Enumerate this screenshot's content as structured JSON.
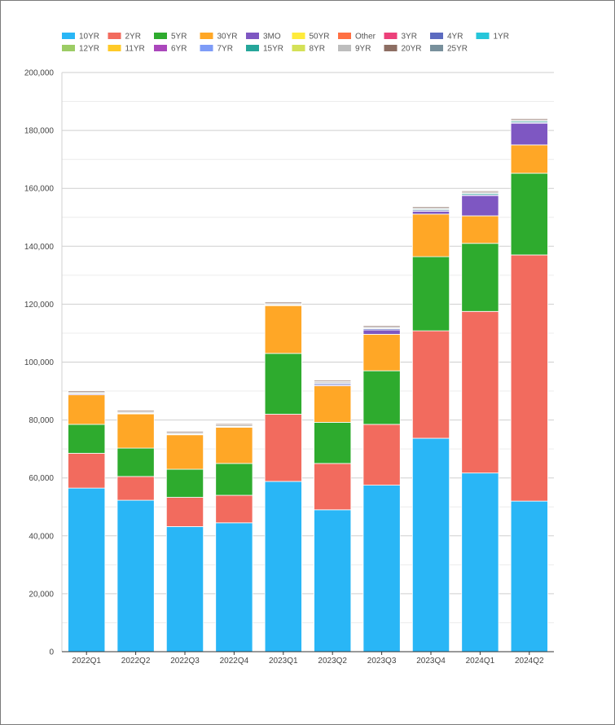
{
  "chart_data": {
    "type": "bar",
    "stacked": true,
    "categories": [
      "2022Q1",
      "2022Q2",
      "2022Q3",
      "2022Q4",
      "2023Q1",
      "2023Q2",
      "2023Q3",
      "2023Q4",
      "2024Q1",
      "2024Q2"
    ],
    "ylim": [
      0,
      200000
    ],
    "yticks": [
      0,
      20000,
      40000,
      60000,
      80000,
      100000,
      120000,
      140000,
      160000,
      180000,
      200000
    ],
    "ytick_labels": [
      "0",
      "20,000",
      "40,000",
      "60,000",
      "80,000",
      "100,000",
      "120,000",
      "140,000",
      "160,000",
      "180,000",
      "200,000"
    ],
    "grid": true,
    "legend_position": "top",
    "series": [
      {
        "name": "10YR",
        "color": "#29b6f6",
        "values": [
          56500,
          52300,
          43200,
          44500,
          58800,
          49000,
          57500,
          73700,
          61700,
          52000
        ]
      },
      {
        "name": "2YR",
        "color": "#f26b5e",
        "values": [
          12000,
          8200,
          10100,
          9500,
          23200,
          16000,
          21000,
          37100,
          55800,
          85000
        ]
      },
      {
        "name": "5YR",
        "color": "#2eab2e",
        "values": [
          10000,
          9800,
          9700,
          11000,
          21000,
          14200,
          18500,
          25600,
          23500,
          28200
        ]
      },
      {
        "name": "30YR",
        "color": "#ffa726",
        "values": [
          10200,
          11800,
          11900,
          12500,
          16500,
          12600,
          12600,
          14700,
          9500,
          9800
        ]
      },
      {
        "name": "3MO",
        "color": "#7e57c2",
        "values": [
          300,
          200,
          100,
          100,
          200,
          300,
          1500,
          1000,
          7000,
          7500
        ]
      },
      {
        "name": "50YR",
        "color": "#ffeb3b",
        "values": [
          0,
          0,
          0,
          0,
          0,
          0,
          0,
          0,
          0,
          0
        ]
      },
      {
        "name": "Other",
        "color": "#ff7043",
        "values": [
          0,
          0,
          0,
          0,
          0,
          0,
          0,
          0,
          0,
          0
        ]
      },
      {
        "name": "3YR",
        "color": "#ec407a",
        "values": [
          0,
          0,
          0,
          0,
          0,
          0,
          0,
          0,
          0,
          0
        ]
      },
      {
        "name": "4YR",
        "color": "#5c6bc0",
        "values": [
          0,
          0,
          0,
          0,
          0,
          500,
          400,
          400,
          300,
          300
        ]
      },
      {
        "name": "1YR",
        "color": "#26c6da",
        "values": [
          0,
          0,
          0,
          0,
          0,
          0,
          0,
          0,
          0,
          0
        ]
      },
      {
        "name": "12YR",
        "color": "#9ccc65",
        "values": [
          0,
          0,
          0,
          0,
          0,
          0,
          0,
          0,
          0,
          0
        ]
      },
      {
        "name": "11YR",
        "color": "#ffca28",
        "values": [
          0,
          0,
          0,
          0,
          0,
          0,
          0,
          0,
          0,
          0
        ]
      },
      {
        "name": "6YR",
        "color": "#ab47bc",
        "values": [
          0,
          0,
          0,
          0,
          0,
          0,
          0,
          0,
          0,
          0
        ]
      },
      {
        "name": "7YR",
        "color": "#7e9cf7",
        "values": [
          0,
          0,
          0,
          0,
          0,
          0,
          0,
          0,
          0,
          0
        ]
      },
      {
        "name": "15YR",
        "color": "#26a69a",
        "values": [
          200,
          200,
          200,
          200,
          200,
          200,
          200,
          300,
          400,
          400
        ]
      },
      {
        "name": "8YR",
        "color": "#d4e157",
        "values": [
          0,
          0,
          0,
          0,
          0,
          0,
          0,
          0,
          0,
          0
        ]
      },
      {
        "name": "9YR",
        "color": "#bdbdbd",
        "values": [
          500,
          500,
          500,
          500,
          500,
          500,
          500,
          500,
          500,
          500
        ]
      },
      {
        "name": "20YR",
        "color": "#8d6e63",
        "values": [
          400,
          400,
          400,
          400,
          400,
          400,
          400,
          400,
          400,
          400
        ]
      },
      {
        "name": "25YR",
        "color": "#78909c",
        "values": [
          0,
          0,
          0,
          0,
          0,
          0,
          0,
          0,
          0,
          0
        ]
      }
    ]
  }
}
